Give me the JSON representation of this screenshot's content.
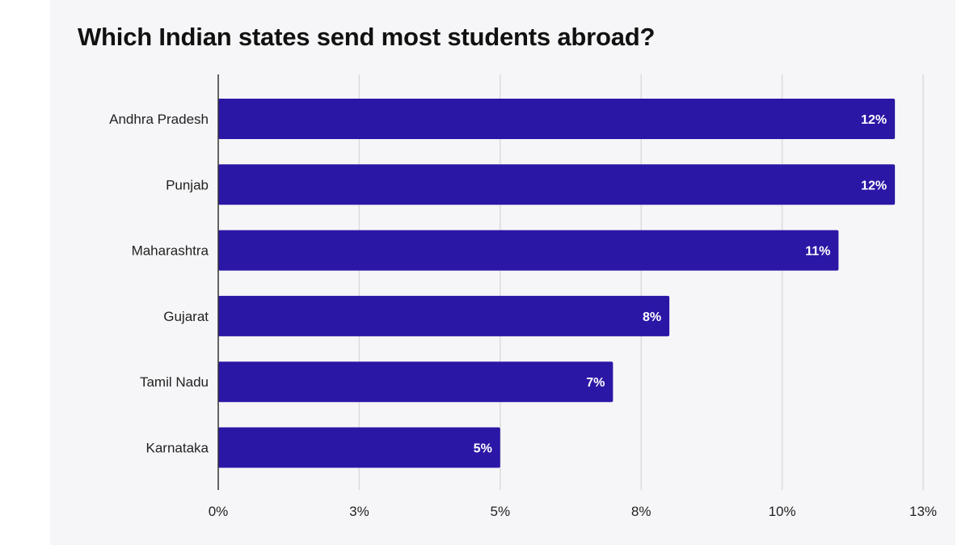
{
  "chart_data": {
    "type": "bar",
    "orientation": "horizontal",
    "title": "Which Indian states send most students abroad?",
    "categories": [
      "Andhra Pradesh",
      "Punjab",
      "Maharashtra",
      "Gujarat",
      "Tamil Nadu",
      "Karnataka"
    ],
    "values": [
      12,
      12,
      11,
      8,
      7,
      5
    ],
    "data_labels": [
      "12%",
      "12%",
      "11%",
      "8%",
      "7%",
      "5%"
    ],
    "xlim": [
      0,
      12.5
    ],
    "x_ticks": [
      {
        "value": 0,
        "label": "0%"
      },
      {
        "value": 2.5,
        "label": "3%"
      },
      {
        "value": 5,
        "label": "5%"
      },
      {
        "value": 7.5,
        "label": "8%"
      },
      {
        "value": 10,
        "label": "10%"
      },
      {
        "value": 12.5,
        "label": "13%"
      }
    ],
    "xlabel": "",
    "ylabel": "",
    "grid": true,
    "bar_color": "#2b17a6"
  }
}
